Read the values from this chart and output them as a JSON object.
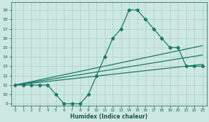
{
  "xlabel": "Humidex (Indice chaleur)",
  "xlim": [
    -0.5,
    23.5
  ],
  "ylim": [
    8.8,
    19.8
  ],
  "yticks": [
    9,
    10,
    11,
    12,
    13,
    14,
    15,
    16,
    17,
    18,
    19
  ],
  "xticks": [
    0,
    1,
    2,
    3,
    4,
    5,
    6,
    7,
    8,
    9,
    10,
    11,
    12,
    13,
    14,
    15,
    16,
    17,
    18,
    19,
    20,
    21,
    22,
    23
  ],
  "bg_color": "#cce8e0",
  "grid_color": "#aad0c8",
  "line_color": "#1a7a6a",
  "tick_color": "#1a5a50",
  "series_main": {
    "x": [
      0,
      1,
      2,
      3,
      4,
      5,
      6,
      7,
      8,
      9,
      10,
      11,
      12,
      13,
      14,
      15,
      16,
      17,
      18,
      19,
      20,
      21,
      22,
      23
    ],
    "y": [
      11,
      11,
      11,
      11,
      11,
      10,
      9,
      9,
      9,
      10,
      12,
      14,
      16,
      17,
      19,
      19,
      18,
      17,
      16,
      15,
      15,
      13,
      13,
      13
    ]
  },
  "series_lines": [
    {
      "x0": 0,
      "y0": 11,
      "x1": 23,
      "y1": 15.2
    },
    {
      "x0": 0,
      "y0": 11,
      "x1": 23,
      "y1": 14.2
    },
    {
      "x0": 0,
      "y0": 11,
      "x1": 23,
      "y1": 13.2
    }
  ]
}
